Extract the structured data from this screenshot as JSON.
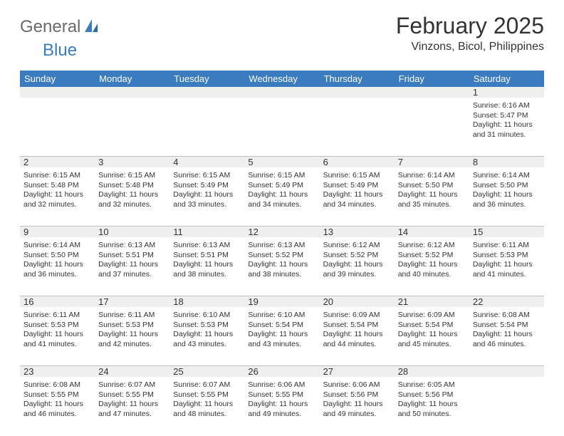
{
  "brand": {
    "word1": "General",
    "word2": "Blue"
  },
  "title": "February 2025",
  "location": "Vinzons, Bicol, Philippines",
  "colors": {
    "header_bg": "#3b7bbf",
    "header_text": "#ffffff",
    "strip_bg": "#efefef",
    "text": "#333333",
    "logo_gray": "#6a6a6a",
    "logo_blue": "#3b7bbf",
    "rule": "#bfbfbf",
    "background": "#ffffff"
  },
  "typography": {
    "title_fontsize": 32,
    "location_fontsize": 16,
    "dow_fontsize": 13,
    "daynum_fontsize": 13,
    "info_fontsize": 10.5,
    "logo_fontsize": 24
  },
  "dow": [
    "Sunday",
    "Monday",
    "Tuesday",
    "Wednesday",
    "Thursday",
    "Friday",
    "Saturday"
  ],
  "weeks": [
    [
      null,
      null,
      null,
      null,
      null,
      null,
      {
        "n": "1",
        "sunrise": "6:16 AM",
        "sunset": "5:47 PM",
        "daylight": "11 hours and 31 minutes."
      }
    ],
    [
      {
        "n": "2",
        "sunrise": "6:15 AM",
        "sunset": "5:48 PM",
        "daylight": "11 hours and 32 minutes."
      },
      {
        "n": "3",
        "sunrise": "6:15 AM",
        "sunset": "5:48 PM",
        "daylight": "11 hours and 32 minutes."
      },
      {
        "n": "4",
        "sunrise": "6:15 AM",
        "sunset": "5:49 PM",
        "daylight": "11 hours and 33 minutes."
      },
      {
        "n": "5",
        "sunrise": "6:15 AM",
        "sunset": "5:49 PM",
        "daylight": "11 hours and 34 minutes."
      },
      {
        "n": "6",
        "sunrise": "6:15 AM",
        "sunset": "5:49 PM",
        "daylight": "11 hours and 34 minutes."
      },
      {
        "n": "7",
        "sunrise": "6:14 AM",
        "sunset": "5:50 PM",
        "daylight": "11 hours and 35 minutes."
      },
      {
        "n": "8",
        "sunrise": "6:14 AM",
        "sunset": "5:50 PM",
        "daylight": "11 hours and 36 minutes."
      }
    ],
    [
      {
        "n": "9",
        "sunrise": "6:14 AM",
        "sunset": "5:50 PM",
        "daylight": "11 hours and 36 minutes."
      },
      {
        "n": "10",
        "sunrise": "6:13 AM",
        "sunset": "5:51 PM",
        "daylight": "11 hours and 37 minutes."
      },
      {
        "n": "11",
        "sunrise": "6:13 AM",
        "sunset": "5:51 PM",
        "daylight": "11 hours and 38 minutes."
      },
      {
        "n": "12",
        "sunrise": "6:13 AM",
        "sunset": "5:52 PM",
        "daylight": "11 hours and 38 minutes."
      },
      {
        "n": "13",
        "sunrise": "6:12 AM",
        "sunset": "5:52 PM",
        "daylight": "11 hours and 39 minutes."
      },
      {
        "n": "14",
        "sunrise": "6:12 AM",
        "sunset": "5:52 PM",
        "daylight": "11 hours and 40 minutes."
      },
      {
        "n": "15",
        "sunrise": "6:11 AM",
        "sunset": "5:53 PM",
        "daylight": "11 hours and 41 minutes."
      }
    ],
    [
      {
        "n": "16",
        "sunrise": "6:11 AM",
        "sunset": "5:53 PM",
        "daylight": "11 hours and 41 minutes."
      },
      {
        "n": "17",
        "sunrise": "6:11 AM",
        "sunset": "5:53 PM",
        "daylight": "11 hours and 42 minutes."
      },
      {
        "n": "18",
        "sunrise": "6:10 AM",
        "sunset": "5:53 PM",
        "daylight": "11 hours and 43 minutes."
      },
      {
        "n": "19",
        "sunrise": "6:10 AM",
        "sunset": "5:54 PM",
        "daylight": "11 hours and 43 minutes."
      },
      {
        "n": "20",
        "sunrise": "6:09 AM",
        "sunset": "5:54 PM",
        "daylight": "11 hours and 44 minutes."
      },
      {
        "n": "21",
        "sunrise": "6:09 AM",
        "sunset": "5:54 PM",
        "daylight": "11 hours and 45 minutes."
      },
      {
        "n": "22",
        "sunrise": "6:08 AM",
        "sunset": "5:54 PM",
        "daylight": "11 hours and 46 minutes."
      }
    ],
    [
      {
        "n": "23",
        "sunrise": "6:08 AM",
        "sunset": "5:55 PM",
        "daylight": "11 hours and 46 minutes."
      },
      {
        "n": "24",
        "sunrise": "6:07 AM",
        "sunset": "5:55 PM",
        "daylight": "11 hours and 47 minutes."
      },
      {
        "n": "25",
        "sunrise": "6:07 AM",
        "sunset": "5:55 PM",
        "daylight": "11 hours and 48 minutes."
      },
      {
        "n": "26",
        "sunrise": "6:06 AM",
        "sunset": "5:55 PM",
        "daylight": "11 hours and 49 minutes."
      },
      {
        "n": "27",
        "sunrise": "6:06 AM",
        "sunset": "5:56 PM",
        "daylight": "11 hours and 49 minutes."
      },
      {
        "n": "28",
        "sunrise": "6:05 AM",
        "sunset": "5:56 PM",
        "daylight": "11 hours and 50 minutes."
      },
      null
    ]
  ],
  "labels": {
    "sunrise": "Sunrise: ",
    "sunset": "Sunset: ",
    "daylight": "Daylight: "
  }
}
